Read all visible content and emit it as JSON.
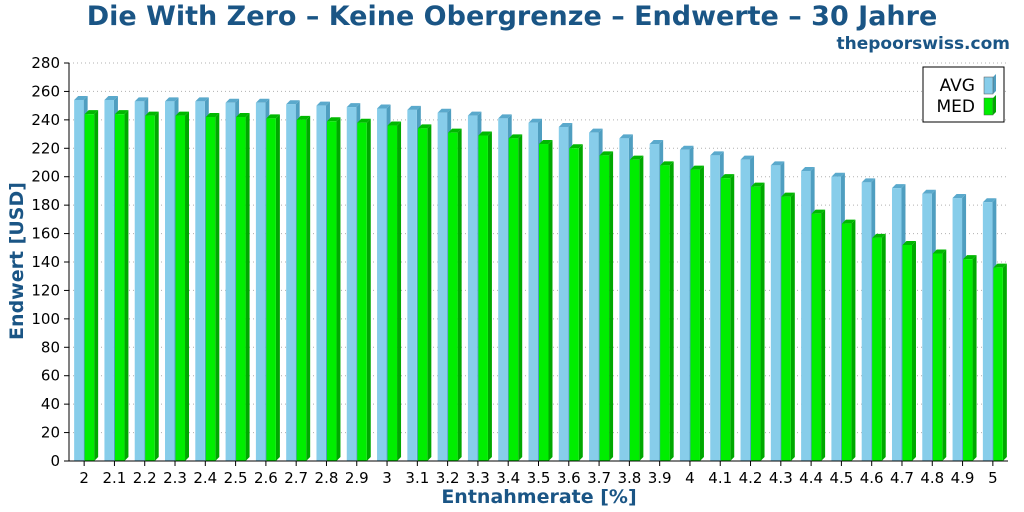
{
  "header": {
    "title": "Die With Zero – Keine Obergrenze – Endwerte – 30 Jahre",
    "source": "thepoorswiss.com"
  },
  "colors": {
    "title": "#1a5585",
    "avg_front": "#87cdea",
    "avg_side": "#4f9ec0",
    "avg_top": "#5aa9cc",
    "med_front": "#00ee00",
    "med_side": "#00a800",
    "med_top": "#00b800",
    "grid": "#b0b0b0"
  },
  "chart_data": {
    "type": "bar",
    "title": "Die With Zero – Keine Obergrenze – Endwerte – 30 Jahre",
    "xlabel": "Entnahmerate [%]",
    "ylabel": "Endwert [USD]",
    "ylim": [
      0,
      280
    ],
    "yticks": [
      0,
      20,
      40,
      60,
      80,
      100,
      120,
      140,
      160,
      180,
      200,
      220,
      240,
      260,
      280
    ],
    "grid": "horizontal dotted",
    "legend_position": "top-right",
    "categories": [
      "2",
      "2.1",
      "2.2",
      "2.3",
      "2.4",
      "2.5",
      "2.6",
      "2.7",
      "2.8",
      "2.9",
      "3",
      "3.1",
      "3.2",
      "3.3",
      "3.4",
      "3.5",
      "3.6",
      "3.7",
      "3.8",
      "3.9",
      "4",
      "4.1",
      "4.2",
      "4.3",
      "4.4",
      "4.5",
      "4.6",
      "4.7",
      "4.8",
      "4.9",
      "5"
    ],
    "series": [
      {
        "name": "AVG",
        "values": [
          254,
          254,
          253,
          253,
          253,
          252,
          252,
          251,
          250,
          249,
          248,
          247,
          245,
          243,
          241,
          238,
          235,
          231,
          227,
          223,
          219,
          215,
          212,
          208,
          204,
          200,
          196,
          192,
          188,
          185,
          182
        ]
      },
      {
        "name": "MED",
        "values": [
          244,
          244,
          243,
          243,
          242,
          242,
          241,
          240,
          239,
          238,
          236,
          234,
          231,
          229,
          227,
          223,
          220,
          215,
          212,
          208,
          205,
          199,
          193,
          186,
          174,
          167,
          157,
          152,
          146,
          142,
          136
        ]
      }
    ]
  }
}
